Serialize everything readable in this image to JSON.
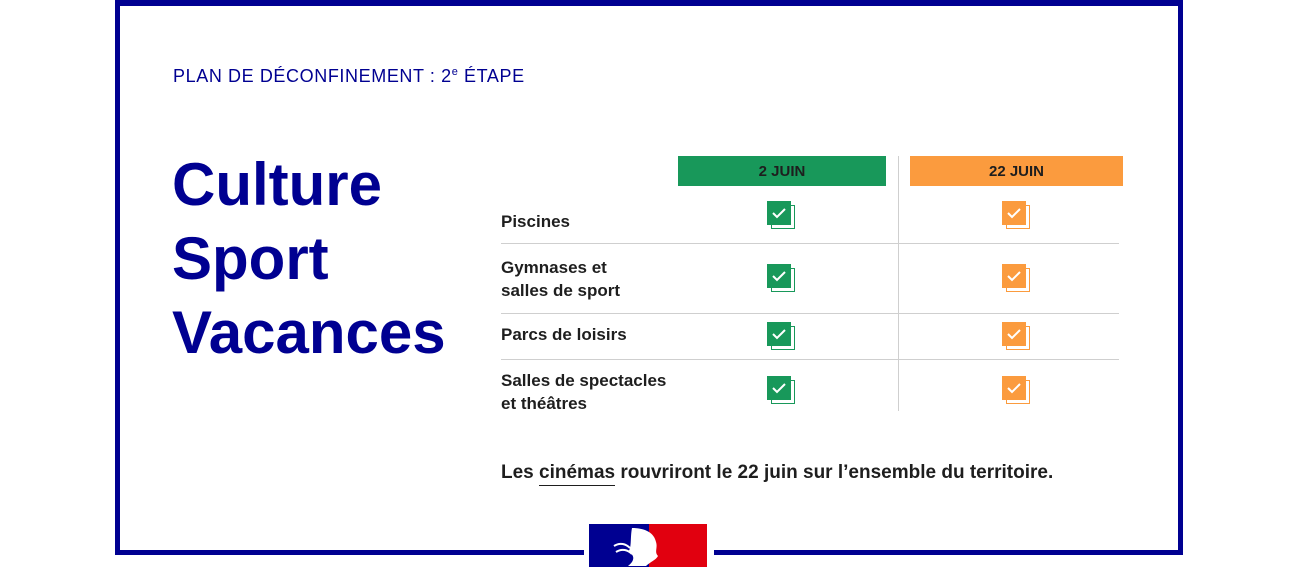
{
  "kicker": {
    "text": "PLAN DE DÉCONFINEMENT : 2",
    "sup": "e",
    "tail": " ÉTAPE"
  },
  "title_lines": [
    "Culture",
    "Sport",
    "Vacances"
  ],
  "columns": [
    {
      "label": "2 JUIN",
      "color": "#18985a"
    },
    {
      "label": "22 JUIN",
      "color": "#fb9b3e"
    }
  ],
  "rows": [
    {
      "label_lines": [
        "Piscines"
      ],
      "june2": true,
      "june22": true
    },
    {
      "label_lines": [
        "Gymnases et",
        "salles de sport"
      ],
      "june2": true,
      "june22": true
    },
    {
      "label_lines": [
        "Parcs de loisirs"
      ],
      "june2": true,
      "june22": true
    },
    {
      "label_lines": [
        "Salles de spectacles",
        "et théâtres"
      ],
      "june2": true,
      "june22": true
    }
  ],
  "note": {
    "before": "Les ",
    "underlined": "cinémas",
    "after": " rouvriront le 22 juin sur l’ensemble du territoire."
  },
  "logo": {
    "name": "marianne-logo",
    "colors": [
      "#000091",
      "#ffffff",
      "#e1000f"
    ]
  },
  "brand_colors": {
    "navy": "#000091",
    "green": "#18985a",
    "orange": "#fb9b3e"
  }
}
